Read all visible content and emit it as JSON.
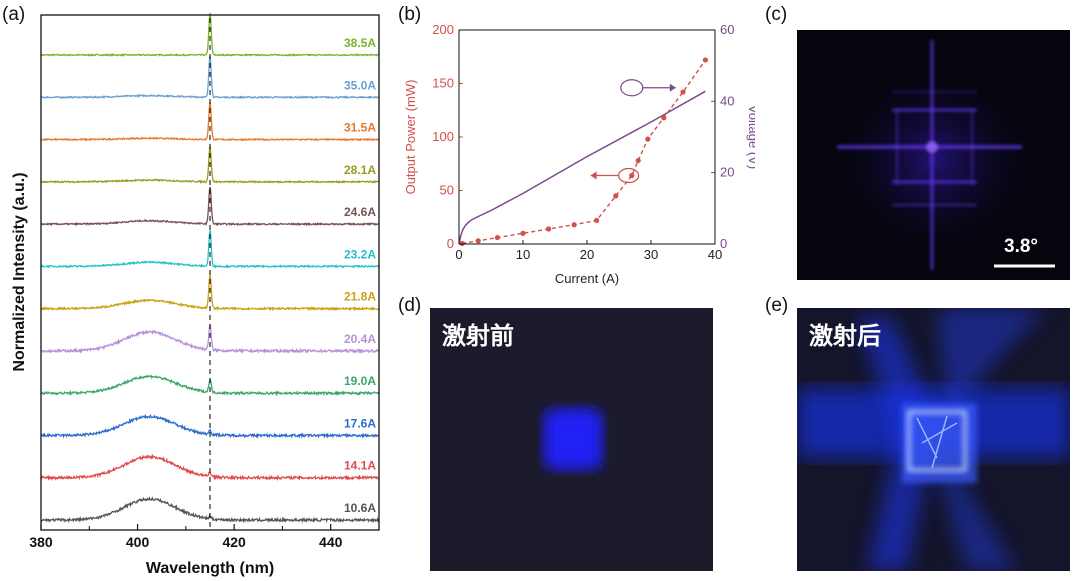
{
  "panels": {
    "a": "(a)",
    "b": "(b)",
    "c": "(c)",
    "d": "(d)",
    "e": "(e)"
  },
  "image_c": {
    "scale_label": "3.8°"
  },
  "image_d": {
    "label": "激射前"
  },
  "image_e": {
    "label": "激射后"
  },
  "chart_data": [
    {
      "type": "line",
      "panel": "(a)",
      "xlabel": "Wavelength (nm)",
      "ylabel": "Normalized Intensity (a.u.)",
      "xlim": [
        380,
        450
      ],
      "xticks": [
        380,
        400,
        420,
        440
      ],
      "peak_marker_nm": 415,
      "series": [
        {
          "name": "38.5A",
          "color": "#7ab32e",
          "broad_amp": 0.0,
          "peak_amp": 1.0
        },
        {
          "name": "35.0A",
          "color": "#6a9fcf",
          "broad_amp": 0.04,
          "peak_amp": 1.0
        },
        {
          "name": "31.5A",
          "color": "#e8782a",
          "broad_amp": 0.03,
          "peak_amp": 0.9
        },
        {
          "name": "28.1A",
          "color": "#9a9a20",
          "broad_amp": 0.04,
          "peak_amp": 0.85
        },
        {
          "name": "24.6A",
          "color": "#7a5252",
          "broad_amp": 0.08,
          "peak_amp": 0.9
        },
        {
          "name": "23.2A",
          "color": "#22c2c8",
          "broad_amp": 0.1,
          "peak_amp": 0.85
        },
        {
          "name": "21.8A",
          "color": "#c9a016",
          "broad_amp": 0.2,
          "peak_amp": 0.8
        },
        {
          "name": "20.4A",
          "color": "#b890d8",
          "broad_amp": 0.45,
          "peak_amp": 0.6
        },
        {
          "name": "19.0A",
          "color": "#3aa66a",
          "broad_amp": 0.4,
          "peak_amp": 0.3
        },
        {
          "name": "17.6A",
          "color": "#2a6bc8",
          "broad_amp": 0.45,
          "peak_amp": 0.1
        },
        {
          "name": "14.1A",
          "color": "#e04a4a",
          "broad_amp": 0.5,
          "peak_amp": 0.1
        },
        {
          "name": "10.6A",
          "color": "#555555",
          "broad_amp": 0.5,
          "peak_amp": 0.05
        }
      ]
    },
    {
      "type": "line",
      "panel": "(b)",
      "xlabel": "Current (A)",
      "ylabel": "Output Power (mW)",
      "y2label": "Voltage (V)",
      "xlim": [
        0,
        40
      ],
      "ylim": [
        0,
        200
      ],
      "y2lim": [
        0,
        60
      ],
      "xticks": [
        0,
        10,
        20,
        30,
        40
      ],
      "yticks": [
        0,
        50,
        100,
        150,
        200
      ],
      "y2ticks": [
        0,
        20,
        40,
        60
      ],
      "series": [
        {
          "name": "Output Power",
          "axis": "left",
          "color": "#d0504a",
          "style": "dashed-markers",
          "x": [
            0.5,
            3,
            6,
            10,
            14,
            18,
            21.5,
            24.5,
            27,
            28,
            29.5,
            32,
            35,
            38.5
          ],
          "y": [
            0.5,
            3,
            6,
            10,
            14,
            18,
            22,
            45,
            64,
            78,
            98,
            118,
            142,
            172
          ]
        },
        {
          "name": "Voltage",
          "axis": "right",
          "color": "#7a4a8c",
          "style": "solid",
          "x": [
            0,
            0.3,
            0.6,
            1,
            1.5,
            2,
            3,
            5,
            10,
            20,
            30,
            38.5
          ],
          "y": [
            0,
            2.5,
            4,
            5.2,
            6.1,
            6.8,
            7.7,
            9.4,
            14.2,
            24.5,
            34.2,
            42.8
          ]
        }
      ],
      "annotations": [
        {
          "type": "ellipse-arrow",
          "x": 26.5,
          "y": 64,
          "points_to": "left axis"
        },
        {
          "type": "ellipse-arrow",
          "x": 27,
          "y": 146,
          "points_to": "right axis"
        }
      ]
    }
  ]
}
